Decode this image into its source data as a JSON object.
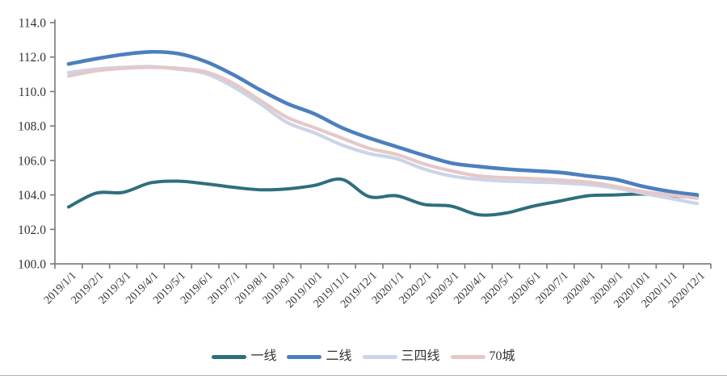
{
  "chart_data": {
    "type": "line",
    "title": "",
    "x_categories": [
      "2019/1/1",
      "2019/2/1",
      "2019/3/1",
      "2019/4/1",
      "2019/5/1",
      "2019/6/1",
      "2019/7/1",
      "2019/8/1",
      "2019/9/1",
      "2019/10/1",
      "2019/11/1",
      "2019/12/1",
      "2020/1/1",
      "2020/2/1",
      "2020/3/1",
      "2020/4/1",
      "2020/5/1",
      "2020/6/1",
      "2020/7/1",
      "2020/8/1",
      "2020/9/1",
      "2020/10/1",
      "2020/11/1",
      "2020/12/1"
    ],
    "y_axis": {
      "min": 100,
      "max": 114,
      "tick_step": 2,
      "tick_labels": [
        "114.0",
        "112.0",
        "110.0",
        "108.0",
        "106.0",
        "104.0",
        "102.0",
        "100.0"
      ]
    },
    "grid": false,
    "legend_position": "bottom",
    "series": [
      {
        "name": "一线",
        "slug": "tier1",
        "color": "#2E6F7D",
        "values": [
          103.3,
          104.1,
          104.15,
          104.7,
          104.8,
          104.65,
          104.45,
          104.3,
          104.35,
          104.55,
          104.9,
          103.9,
          103.95,
          103.45,
          103.35,
          102.85,
          102.95,
          103.35,
          103.65,
          103.95,
          104.0,
          104.05,
          103.95,
          103.85
        ]
      },
      {
        "name": "二线",
        "slug": "tier2",
        "color": "#4C7FBE",
        "values": [
          111.6,
          111.9,
          112.15,
          112.3,
          112.2,
          111.75,
          111.0,
          110.1,
          109.3,
          108.7,
          107.9,
          107.3,
          106.8,
          106.3,
          105.85,
          105.65,
          105.5,
          105.4,
          105.3,
          105.1,
          104.9,
          104.5,
          104.2,
          104.0
        ]
      },
      {
        "name": "三四线",
        "slug": "tier34",
        "color": "#CCD4E8",
        "values": [
          111.1,
          111.3,
          111.4,
          111.45,
          111.3,
          111.05,
          110.3,
          109.3,
          108.2,
          107.6,
          106.9,
          106.4,
          106.1,
          105.5,
          105.1,
          104.9,
          104.8,
          104.75,
          104.7,
          104.6,
          104.4,
          104.1,
          103.8,
          103.5
        ]
      },
      {
        "name": "70城",
        "slug": "70cities",
        "color": "#E5C8C7",
        "values": [
          110.9,
          111.2,
          111.35,
          111.4,
          111.35,
          111.15,
          110.5,
          109.5,
          108.5,
          107.9,
          107.3,
          106.7,
          106.35,
          105.8,
          105.4,
          105.1,
          105.0,
          104.95,
          104.85,
          104.75,
          104.5,
          104.2,
          104.0,
          103.8
        ]
      }
    ],
    "axis_color": "#7F7F7F",
    "label_color": "#333333"
  }
}
